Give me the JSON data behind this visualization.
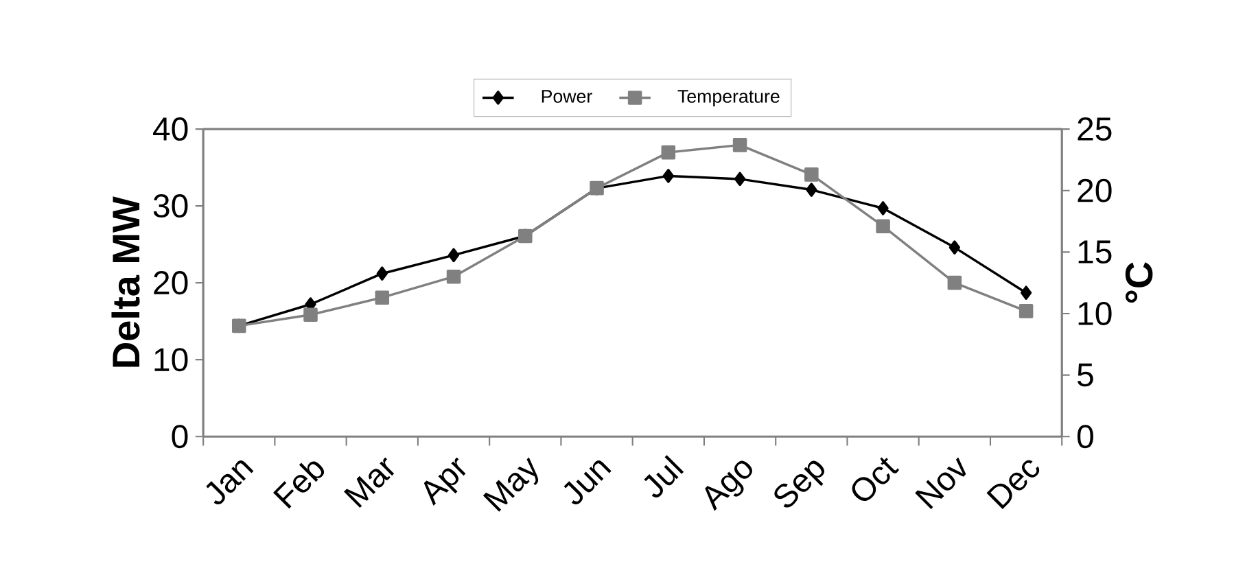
{
  "chart_data": {
    "type": "line",
    "ylabel": "Delta MW",
    "y2label": "°C",
    "categories": [
      "Jan",
      "Feb",
      "Mar",
      "Apr",
      "May",
      "Jun",
      "Jul",
      "Ago",
      "Sep",
      "Oct",
      "Nov",
      "Dec"
    ],
    "series": [
      {
        "name": "Power",
        "color": "#000000",
        "marker": "diamond",
        "values": [
          14.4,
          17.2,
          21.2,
          23.6,
          26.1,
          32.3,
          33.9,
          33.5,
          32.1,
          29.7,
          24.6,
          18.7
        ]
      },
      {
        "name": "Temperature",
        "color": "#808080",
        "marker": "square",
        "axis": "y2",
        "values": [
          9.0,
          9.9,
          11.3,
          13.0,
          16.3,
          20.2,
          23.1,
          23.7,
          21.3,
          17.1,
          12.5,
          10.2
        ]
      }
    ],
    "ylim": [
      0,
      40
    ],
    "yticks": [
      0,
      10,
      20,
      30,
      40
    ],
    "y2lim": [
      0,
      25
    ],
    "y2ticks": [
      0,
      5,
      10,
      15,
      20,
      25
    ],
    "legend": "top",
    "grid": false,
    "line_style": "solid"
  }
}
